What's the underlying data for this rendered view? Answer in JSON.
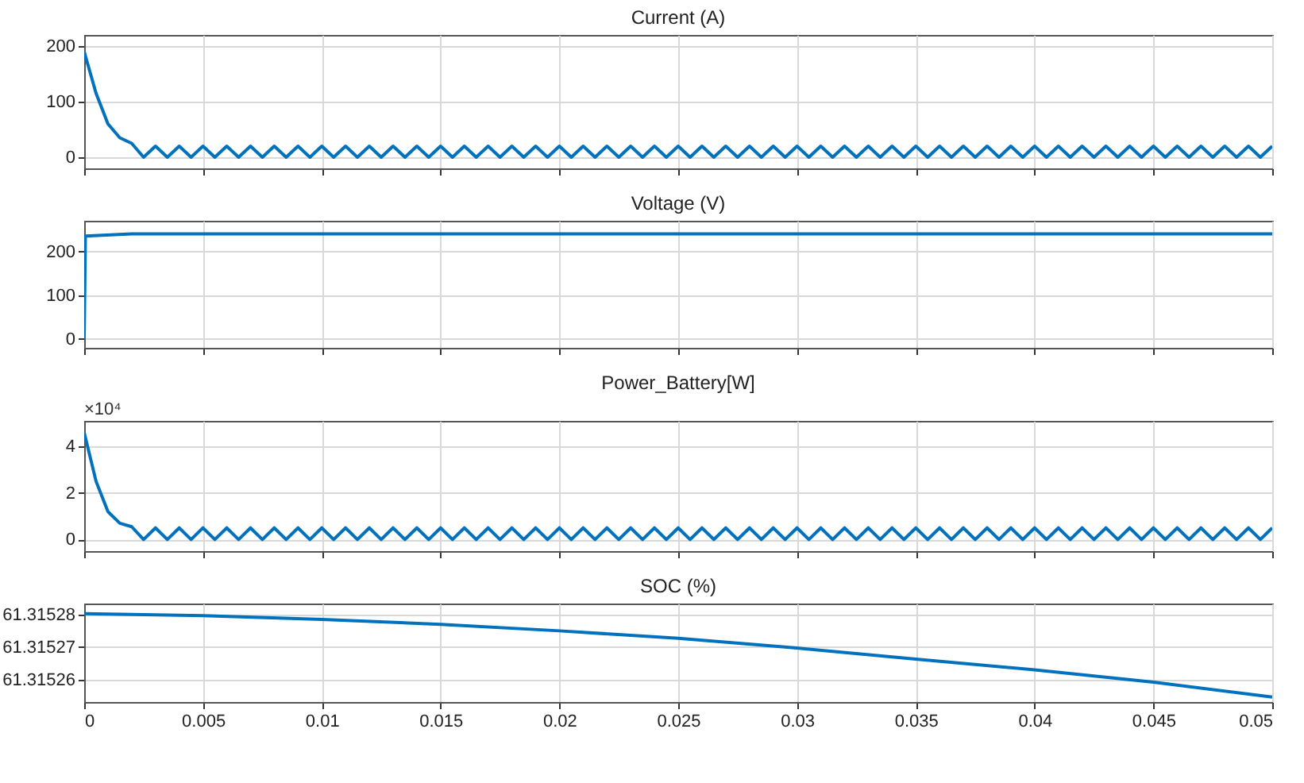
{
  "chart_data": [
    {
      "type": "line",
      "title": "Current (A)",
      "x": [
        0,
        0.0005,
        0.001,
        0.0015,
        0.002,
        0.0025,
        0.003,
        0.0035,
        0.004,
        0.0045,
        0.005,
        0.0055,
        0.006,
        0.0065,
        0.007,
        0.0075,
        0.008,
        0.0085,
        0.009,
        0.0095,
        0.01,
        0.0105,
        0.011,
        0.0115,
        0.012,
        0.0125,
        0.013,
        0.0135,
        0.014,
        0.0145,
        0.015,
        0.0155,
        0.016,
        0.0165,
        0.017,
        0.0175,
        0.018,
        0.0185,
        0.019,
        0.0195,
        0.02,
        0.0205,
        0.021,
        0.0215,
        0.022,
        0.0225,
        0.023,
        0.0235,
        0.024,
        0.0245,
        0.025,
        0.0255,
        0.026,
        0.0265,
        0.027,
        0.0275,
        0.028,
        0.0285,
        0.029,
        0.0295,
        0.03,
        0.0305,
        0.031,
        0.0315,
        0.032,
        0.0325,
        0.033,
        0.0335,
        0.034,
        0.0345,
        0.035,
        0.0355,
        0.036,
        0.0365,
        0.037,
        0.0375,
        0.038,
        0.0385,
        0.039,
        0.0395,
        0.04,
        0.0405,
        0.041,
        0.0415,
        0.042,
        0.0425,
        0.043,
        0.0435,
        0.044,
        0.0445,
        0.045,
        0.0455,
        0.046,
        0.0465,
        0.047,
        0.0475,
        0.048,
        0.0485,
        0.049,
        0.0495,
        0.05
      ],
      "series": [
        {
          "color": "#0072bd",
          "values": [
            190,
            115,
            60,
            35,
            25,
            0,
            20,
            0,
            20,
            0,
            20,
            0,
            20,
            0,
            20,
            0,
            20,
            0,
            20,
            0,
            20,
            0,
            20,
            0,
            20,
            0,
            20,
            0,
            20,
            0,
            20,
            0,
            20,
            0,
            20,
            0,
            20,
            0,
            20,
            0,
            20,
            0,
            20,
            0,
            20,
            0,
            20,
            0,
            20,
            0,
            20,
            0,
            20,
            0,
            20,
            0,
            20,
            0,
            20,
            0,
            20,
            0,
            20,
            0,
            20,
            0,
            20,
            0,
            20,
            0,
            20,
            0,
            20,
            0,
            20,
            0,
            20,
            0,
            20,
            0,
            20,
            0,
            20,
            0,
            20,
            0,
            20,
            0,
            20,
            0,
            20,
            0,
            20,
            0,
            20,
            0,
            20,
            0,
            20,
            0,
            20
          ]
        }
      ],
      "xlim": [
        0,
        0.05
      ],
      "xticks": [
        0,
        0.005,
        0.01,
        0.015,
        0.02,
        0.025,
        0.03,
        0.035,
        0.04,
        0.045,
        0.05
      ],
      "ylim": [
        -20,
        220
      ],
      "yticks": [
        0,
        100,
        200
      ],
      "grid": true,
      "tick_labels": "y"
    },
    {
      "type": "line",
      "title": "Voltage (V)",
      "x": [
        0,
        5e-05,
        0.002,
        0.05
      ],
      "series": [
        {
          "color": "#0072bd",
          "values": [
            0,
            235,
            240,
            240
          ]
        }
      ],
      "xlim": [
        0,
        0.05
      ],
      "xticks": [
        0,
        0.005,
        0.01,
        0.015,
        0.02,
        0.025,
        0.03,
        0.035,
        0.04,
        0.045,
        0.05
      ],
      "ylim": [
        -20,
        270
      ],
      "yticks": [
        0,
        100,
        200
      ],
      "grid": true,
      "tick_labels": "y"
    },
    {
      "type": "line",
      "title": "Power_Battery[W]",
      "annotations": [
        "×10⁴"
      ],
      "x": [
        0,
        0.0005,
        0.001,
        0.0015,
        0.002,
        0.0025,
        0.003,
        0.0035,
        0.004,
        0.0045,
        0.005,
        0.0055,
        0.006,
        0.0065,
        0.007,
        0.0075,
        0.008,
        0.0085,
        0.009,
        0.0095,
        0.01,
        0.0105,
        0.011,
        0.0115,
        0.012,
        0.0125,
        0.013,
        0.0135,
        0.014,
        0.0145,
        0.015,
        0.0155,
        0.016,
        0.0165,
        0.017,
        0.0175,
        0.018,
        0.0185,
        0.019,
        0.0195,
        0.02,
        0.0205,
        0.021,
        0.0215,
        0.022,
        0.0225,
        0.023,
        0.0235,
        0.024,
        0.0245,
        0.025,
        0.0255,
        0.026,
        0.0265,
        0.027,
        0.0275,
        0.028,
        0.0285,
        0.029,
        0.0295,
        0.03,
        0.0305,
        0.031,
        0.0315,
        0.032,
        0.0325,
        0.033,
        0.0335,
        0.034,
        0.0345,
        0.035,
        0.0355,
        0.036,
        0.0365,
        0.037,
        0.0375,
        0.038,
        0.0385,
        0.039,
        0.0395,
        0.04,
        0.0405,
        0.041,
        0.0415,
        0.042,
        0.0425,
        0.043,
        0.0435,
        0.044,
        0.0445,
        0.045,
        0.0455,
        0.046,
        0.0465,
        0.047,
        0.0475,
        0.048,
        0.0485,
        0.049,
        0.0495,
        0.05
      ],
      "series": [
        {
          "color": "#0072bd",
          "values": [
            4.6,
            2.5,
            1.2,
            0.7,
            0.55,
            0,
            0.5,
            0,
            0.5,
            0,
            0.5,
            0,
            0.5,
            0,
            0.5,
            0,
            0.5,
            0,
            0.5,
            0,
            0.5,
            0,
            0.5,
            0,
            0.5,
            0,
            0.5,
            0,
            0.5,
            0,
            0.5,
            0,
            0.5,
            0,
            0.5,
            0,
            0.5,
            0,
            0.5,
            0,
            0.5,
            0,
            0.5,
            0,
            0.5,
            0,
            0.5,
            0,
            0.5,
            0,
            0.5,
            0,
            0.5,
            0,
            0.5,
            0,
            0.5,
            0,
            0.5,
            0,
            0.5,
            0,
            0.5,
            0,
            0.5,
            0,
            0.5,
            0,
            0.5,
            0,
            0.5,
            0,
            0.5,
            0,
            0.5,
            0,
            0.5,
            0,
            0.5,
            0,
            0.5,
            0,
            0.5,
            0,
            0.5,
            0,
            0.5,
            0,
            0.5,
            0,
            0.5,
            0,
            0.5,
            0,
            0.5,
            0,
            0.5,
            0,
            0.5,
            0,
            0.5
          ]
        }
      ],
      "xlim": [
        0,
        0.05
      ],
      "xticks": [
        0,
        0.005,
        0.01,
        0.015,
        0.02,
        0.025,
        0.03,
        0.035,
        0.04,
        0.045,
        0.05
      ],
      "ylim": [
        -0.5,
        5.1
      ],
      "yticks": [
        0,
        2,
        4
      ],
      "grid": true,
      "tick_labels": "y"
    },
    {
      "type": "line",
      "title": "SOC (%)",
      "x": [
        0,
        0.005,
        0.01,
        0.015,
        0.02,
        0.025,
        0.03,
        0.035,
        0.04,
        0.045,
        0.05
      ],
      "series": [
        {
          "color": "#0072bd",
          "values": [
            61.3152803,
            61.3152797,
            61.3152785,
            61.315277,
            61.315275,
            61.3152727,
            61.3152697,
            61.3152663,
            61.315263,
            61.3152592,
            61.3152546
          ]
        }
      ],
      "xlim": [
        0,
        0.05
      ],
      "xticks": [
        0,
        0.005,
        0.01,
        0.015,
        0.02,
        0.025,
        0.03,
        0.035,
        0.04,
        0.045,
        0.05
      ],
      "ylim": [
        61.3152531,
        61.3152834
      ],
      "yticks": [
        61.31526,
        61.31527,
        61.31528
      ],
      "grid": true
    }
  ]
}
